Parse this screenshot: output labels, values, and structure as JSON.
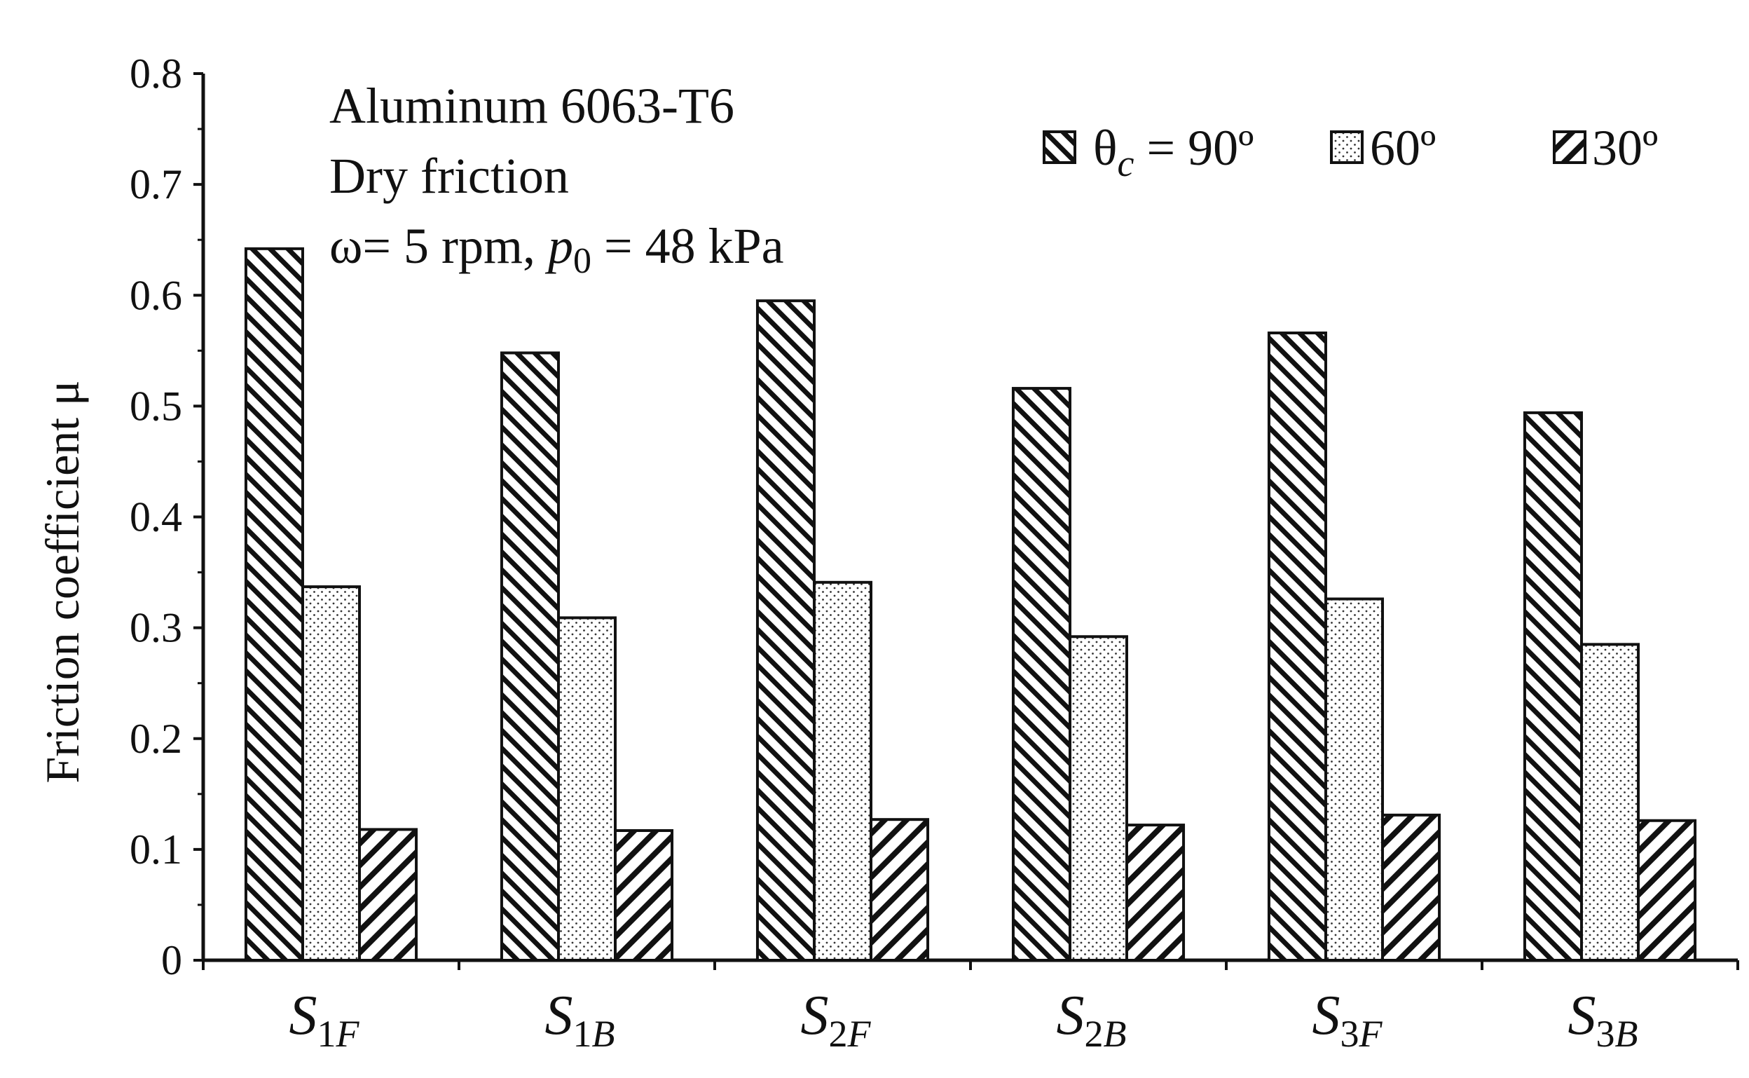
{
  "chart_data": {
    "type": "bar",
    "title": "",
    "ylabel": "Friction coefficient μ",
    "xlabel": "",
    "ylim": [
      0,
      0.8
    ],
    "yticks": [
      "0",
      "0.1",
      "0.2",
      "0.3",
      "0.4",
      "0.5",
      "0.6",
      "0.7",
      "0.8"
    ],
    "categories": [
      {
        "main": "S",
        "num": "1",
        "sub": "F"
      },
      {
        "main": "S",
        "num": "1",
        "sub": "B"
      },
      {
        "main": "S",
        "num": "2",
        "sub": "F"
      },
      {
        "main": "S",
        "num": "2",
        "sub": "B"
      },
      {
        "main": "S",
        "num": "3",
        "sub": "F"
      },
      {
        "main": "S",
        "num": "3",
        "sub": "B"
      }
    ],
    "series": [
      {
        "name": "θc = 90º",
        "pattern": "hatch-back",
        "values": [
          0.642,
          0.548,
          0.595,
          0.516,
          0.566,
          0.494
        ]
      },
      {
        "name": "60º",
        "pattern": "dots",
        "values": [
          0.337,
          0.309,
          0.341,
          0.292,
          0.326,
          0.285
        ]
      },
      {
        "name": "30º",
        "pattern": "hatch-forward",
        "values": [
          0.118,
          0.117,
          0.127,
          0.122,
          0.131,
          0.126
        ]
      }
    ],
    "annotations": {
      "line1": "Aluminum 6063-T6",
      "line2": "Dry friction",
      "line3_prefix": "ω= 5 rpm,  ",
      "line3_p": "p",
      "line3_sub": "0",
      "line3_suffix": " = 48 kPa"
    },
    "legend": {
      "theta": "θ",
      "theta_sub": "c",
      "eq": " =  90º",
      "label_60": "60º",
      "label_30": "30º"
    }
  }
}
